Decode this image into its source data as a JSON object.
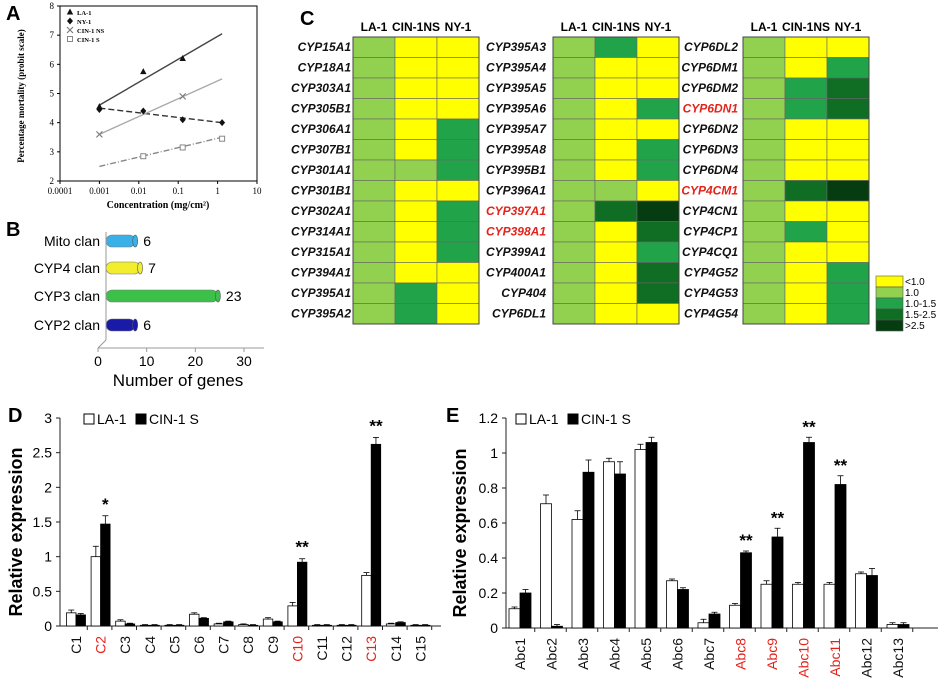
{
  "panels": {
    "A": "A",
    "B": "B",
    "C": "C",
    "D": "D",
    "E": "E"
  },
  "chart_data": [
    {
      "id": "A",
      "type": "scatter",
      "xscale": "log",
      "xlim": [
        0.0001,
        10
      ],
      "ylim": [
        2,
        8
      ],
      "xticks": [
        "0.0001",
        "0.001",
        "0.01",
        "0.1",
        "1",
        "10"
      ],
      "xtick_values": [
        0.0001,
        0.001,
        0.01,
        0.1,
        1,
        10
      ],
      "yticks": [
        2,
        3,
        4,
        5,
        6,
        7,
        8
      ],
      "xlabel": "Concentration (mg/cm²)",
      "ylabel": "Percentage mortality (probit scale)",
      "series": [
        {
          "name": "LA-1",
          "marker": "triangle",
          "line": "solid",
          "color": "#444444",
          "x": [
            0.001,
            0.013,
            0.13
          ],
          "y": [
            4.55,
            5.75,
            6.2
          ],
          "fit": [
            [
              0.001,
              4.6
            ],
            [
              1.3,
              7.05
            ]
          ]
        },
        {
          "name": "NY-1",
          "marker": "diamond",
          "line": "dashed",
          "color": "#333333",
          "x": [
            0.001,
            0.013,
            0.13,
            1.3
          ],
          "y": [
            4.45,
            4.4,
            4.1,
            4.0
          ],
          "fit": [
            [
              0.001,
              4.5
            ],
            [
              1.3,
              4.0
            ]
          ]
        },
        {
          "name": "CIN-1 NS",
          "marker": "x",
          "line": "solid-light",
          "color": "#aaaaaa",
          "x": [
            0.001,
            0.13
          ],
          "y": [
            3.6,
            4.9
          ],
          "fit": [
            [
              0.001,
              3.6
            ],
            [
              1.3,
              5.5
            ]
          ]
        },
        {
          "name": "CIN-1 S",
          "marker": "square",
          "line": "dashdot",
          "color": "#888888",
          "x": [
            0.013,
            0.13,
            1.3
          ],
          "y": [
            2.85,
            3.15,
            3.45
          ],
          "fit": [
            [
              0.001,
              2.5
            ],
            [
              1.3,
              3.5
            ]
          ]
        }
      ]
    },
    {
      "id": "B",
      "type": "bar",
      "orientation": "horizontal",
      "categories": [
        "Mito clan",
        "CYP4 clan",
        "CYP3 clan",
        "CYP2 clan"
      ],
      "values": [
        6,
        7,
        23,
        6
      ],
      "colors": [
        "#3ab0e8",
        "#f2ee2e",
        "#3cc04a",
        "#1a1aa8"
      ],
      "xticks": [
        0,
        10,
        20,
        30
      ],
      "xlim": [
        0,
        30
      ],
      "xlabel": "Number of genes"
    },
    {
      "id": "C",
      "type": "heatmap",
      "columns": [
        "LA-1",
        "CIN-1NS",
        "NY-1"
      ],
      "legend": [
        {
          "label": "<1.0",
          "color": "#ffff00"
        },
        {
          "label": "1.0",
          "color": "#92d050"
        },
        {
          "label": "1.0-1.5",
          "color": "#21a34a"
        },
        {
          "label": "1.5-2.5",
          "color": "#0f6d24"
        },
        {
          "label": ">2.5",
          "color": "#053d10"
        }
      ],
      "blocks": [
        {
          "genes": [
            "CYP15A1",
            "CYP18A1",
            "CYP303A1",
            "CYP305B1",
            "CYP306A1",
            "CYP307B1",
            "CYP301A1",
            "CYP301B1",
            "CYP302A1",
            "CYP314A1",
            "CYP315A1",
            "CYP394A1",
            "CYP395A1",
            "CYP395A2"
          ],
          "red": [],
          "levels": [
            [
              1,
              0,
              0
            ],
            [
              1,
              0,
              0
            ],
            [
              1,
              0,
              0
            ],
            [
              1,
              0,
              0
            ],
            [
              1,
              0,
              2
            ],
            [
              1,
              0,
              2
            ],
            [
              1,
              1,
              2
            ],
            [
              1,
              0,
              0
            ],
            [
              1,
              0,
              2
            ],
            [
              1,
              0,
              2
            ],
            [
              1,
              0,
              2
            ],
            [
              1,
              0,
              0
            ],
            [
              1,
              2,
              0
            ],
            [
              1,
              2,
              0
            ]
          ]
        },
        {
          "genes": [
            "CYP395A3",
            "CYP395A4",
            "CYP395A5",
            "CYP395A6",
            "CYP395A7",
            "CYP395A8",
            "CYP395B1",
            "CYP396A1",
            "CYP397A1",
            "CYP398A1",
            "CYP399A1",
            "CYP400A1",
            "CYP404",
            "CYP6DL1"
          ],
          "red": [
            "CYP397A1",
            "CYP398A1"
          ],
          "levels": [
            [
              1,
              2,
              0
            ],
            [
              1,
              0,
              0
            ],
            [
              1,
              0,
              0
            ],
            [
              1,
              0,
              2
            ],
            [
              1,
              0,
              0
            ],
            [
              1,
              0,
              2
            ],
            [
              1,
              0,
              2
            ],
            [
              1,
              1,
              0
            ],
            [
              1,
              3,
              4
            ],
            [
              1,
              0,
              3
            ],
            [
              1,
              0,
              2
            ],
            [
              1,
              0,
              3
            ],
            [
              1,
              0,
              3
            ],
            [
              1,
              0,
              0
            ]
          ]
        },
        {
          "genes": [
            "CYP6DL2",
            "CYP6DM1",
            "CYP6DM2",
            "CYP6DN1",
            "CYP6DN2",
            "CYP6DN3",
            "CYP6DN4",
            "CYP4CM1",
            "CYP4CN1",
            "CYP4CP1",
            "CYP4CQ1",
            "CYP4G52",
            "CYP4G53",
            "CYP4G54"
          ],
          "red": [
            "CYP6DN1",
            "CYP4CM1"
          ],
          "levels": [
            [
              1,
              0,
              0
            ],
            [
              1,
              0,
              2
            ],
            [
              1,
              2,
              3
            ],
            [
              1,
              2,
              3
            ],
            [
              1,
              0,
              0
            ],
            [
              1,
              0,
              0
            ],
            [
              1,
              0,
              0
            ],
            [
              1,
              3,
              4
            ],
            [
              1,
              0,
              0
            ],
            [
              1,
              2,
              0
            ],
            [
              1,
              0,
              0
            ],
            [
              1,
              0,
              2
            ],
            [
              1,
              0,
              2
            ],
            [
              1,
              0,
              2
            ]
          ]
        }
      ]
    },
    {
      "id": "D",
      "type": "bar",
      "ylabel": "Relative expression",
      "ylim": [
        0,
        3
      ],
      "yticks": [
        "0",
        "0.5",
        "1",
        "1.5",
        "2",
        "2.5",
        "3"
      ],
      "ytick_values": [
        0,
        0.5,
        1,
        1.5,
        2,
        2.5,
        3
      ],
      "categories": [
        "C1",
        "C2",
        "C3",
        "C4",
        "C5",
        "C6",
        "C7",
        "C8",
        "C9",
        "C10",
        "C11",
        "C12",
        "C13",
        "C14",
        "C15"
      ],
      "red_categories": [
        "C2",
        "C10",
        "C13"
      ],
      "series": [
        {
          "name": "LA-1",
          "fill": "#ffffff",
          "values": [
            0.19,
            1.0,
            0.07,
            0.01,
            0.01,
            0.17,
            0.03,
            0.02,
            0.1,
            0.29,
            0.01,
            0.01,
            0.73,
            0.03,
            0.01
          ],
          "errors": [
            0.04,
            0.15,
            0.02,
            0.01,
            0.01,
            0.02,
            0.01,
            0.01,
            0.02,
            0.05,
            0.01,
            0.01,
            0.04,
            0.01,
            0.01
          ]
        },
        {
          "name": "CIN-1 S",
          "fill": "#000000",
          "values": [
            0.16,
            1.47,
            0.03,
            0.01,
            0.01,
            0.11,
            0.06,
            0.01,
            0.06,
            0.92,
            0.01,
            0.01,
            2.62,
            0.05,
            0.01
          ],
          "errors": [
            0.02,
            0.12,
            0.01,
            0.01,
            0.01,
            0.01,
            0.01,
            0.01,
            0.01,
            0.05,
            0.01,
            0.01,
            0.1,
            0.01,
            0.01
          ]
        }
      ],
      "annotations": [
        "",
        "*",
        "",
        "",
        "",
        "",
        "",
        "",
        "",
        "**",
        "",
        "",
        "**",
        "",
        ""
      ]
    },
    {
      "id": "E",
      "type": "bar",
      "ylabel": "Relative expression",
      "ylim": [
        0,
        1.2
      ],
      "yticks": [
        "0",
        "0.2",
        "0.4",
        "0.6",
        "0.8",
        "1",
        "1.2"
      ],
      "ytick_values": [
        0,
        0.2,
        0.4,
        0.6,
        0.8,
        1,
        1.2
      ],
      "categories": [
        "Abc1",
        "Abc2",
        "Abc3",
        "Abc4",
        "Abc5",
        "Abc6",
        "Abc7",
        "Abc8",
        "Abc9",
        "Abc10",
        "Abc11",
        "Abc12",
        "Abc13"
      ],
      "red_categories": [
        "Abc8",
        "Abc9",
        "Abc10",
        "Abc11"
      ],
      "series": [
        {
          "name": "LA-1",
          "fill": "#ffffff",
          "values": [
            0.11,
            0.71,
            0.62,
            0.95,
            1.02,
            0.27,
            0.03,
            0.13,
            0.25,
            0.25,
            0.25,
            0.31,
            0.02
          ],
          "errors": [
            0.01,
            0.05,
            0.05,
            0.02,
            0.03,
            0.01,
            0.02,
            0.01,
            0.02,
            0.01,
            0.01,
            0.01,
            0.01
          ]
        },
        {
          "name": "CIN-1 S",
          "fill": "#000000",
          "values": [
            0.2,
            0.01,
            0.89,
            0.88,
            1.06,
            0.22,
            0.08,
            0.43,
            0.52,
            1.06,
            0.82,
            0.3,
            0.02
          ],
          "errors": [
            0.02,
            0.01,
            0.07,
            0.07,
            0.03,
            0.01,
            0.01,
            0.01,
            0.05,
            0.03,
            0.05,
            0.04,
            0.01
          ]
        }
      ],
      "annotations": [
        "",
        "",
        "",
        "",
        "",
        "",
        "",
        "**",
        "**",
        "**",
        "**",
        "",
        ""
      ]
    }
  ]
}
